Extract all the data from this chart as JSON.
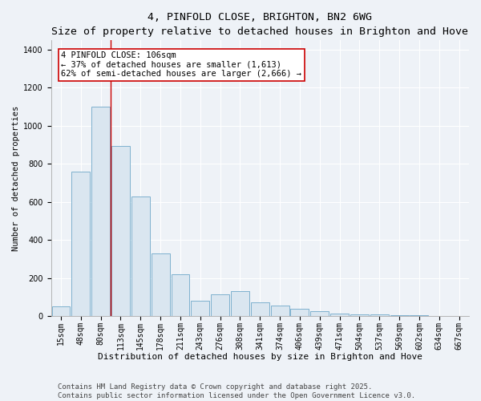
{
  "title": "4, PINFOLD CLOSE, BRIGHTON, BN2 6WG",
  "subtitle": "Size of property relative to detached houses in Brighton and Hove",
  "xlabel": "Distribution of detached houses by size in Brighton and Hove",
  "ylabel": "Number of detached properties",
  "bar_labels": [
    "15sqm",
    "48sqm",
    "80sqm",
    "113sqm",
    "145sqm",
    "178sqm",
    "211sqm",
    "243sqm",
    "276sqm",
    "308sqm",
    "341sqm",
    "374sqm",
    "406sqm",
    "439sqm",
    "471sqm",
    "504sqm",
    "537sqm",
    "569sqm",
    "602sqm",
    "634sqm",
    "667sqm"
  ],
  "bar_values": [
    50,
    760,
    1100,
    895,
    630,
    330,
    220,
    80,
    115,
    130,
    75,
    55,
    40,
    25,
    15,
    10,
    8,
    5,
    5,
    3,
    3
  ],
  "bar_color": "#dae6f0",
  "bar_edge_color": "#6ea8c8",
  "vline_x_index": 2.5,
  "vline_color": "#cc0000",
  "annotation_line1": "4 PINFOLD CLOSE: 106sqm",
  "annotation_line2": "← 37% of detached houses are smaller (1,613)",
  "annotation_line3": "62% of semi-detached houses are larger (2,666) →",
  "annotation_box_color": "#ffffff",
  "annotation_box_edge_color": "#cc0000",
  "ylim": [
    0,
    1450
  ],
  "yticks": [
    0,
    200,
    400,
    600,
    800,
    1000,
    1200,
    1400
  ],
  "footer_line1": "Contains HM Land Registry data © Crown copyright and database right 2025.",
  "footer_line2": "Contains public sector information licensed under the Open Government Licence v3.0.",
  "bg_color": "#eef2f7",
  "grid_color": "#ffffff",
  "title_fontsize": 9.5,
  "subtitle_fontsize": 8.5,
  "xlabel_fontsize": 8,
  "ylabel_fontsize": 7.5,
  "tick_fontsize": 7,
  "annotation_fontsize": 7.5,
  "footer_fontsize": 6.5
}
